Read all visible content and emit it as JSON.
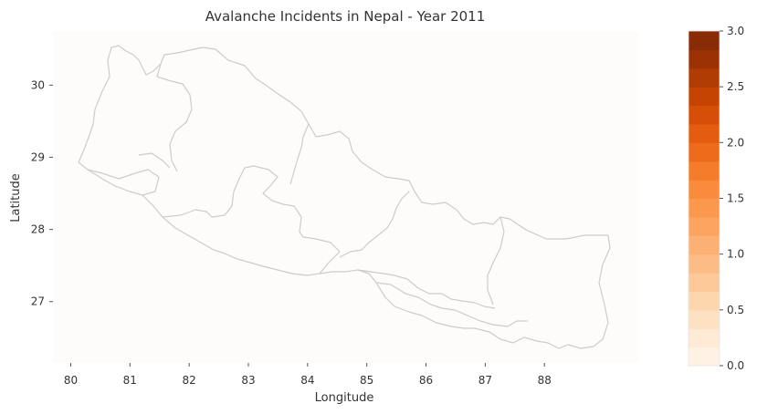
{
  "chart_data": {
    "type": "map",
    "title": "Avalanche Incidents in Nepal - Year 2011",
    "xlabel": "Longitude",
    "ylabel": "Latitude",
    "xlim": [
      79.7,
      89.6
    ],
    "ylim": [
      26.15,
      30.75
    ],
    "xticks": [
      "80",
      "81",
      "82",
      "83",
      "84",
      "85",
      "86",
      "87",
      "88"
    ],
    "yticks": [
      "27",
      "28",
      "29",
      "30"
    ],
    "colorbar": {
      "min": 0.0,
      "max": 3.0,
      "ticks": [
        "0.0",
        "0.5",
        "1.0",
        "1.5",
        "2.0",
        "2.5",
        "3.0"
      ],
      "palette": [
        "#fff5eb",
        "#fee6ce",
        "#fdd0a2",
        "#fdb57d",
        "#fd9f56",
        "#f98431",
        "#ea6313",
        "#d04801",
        "#a53603",
        "#7f2704"
      ]
    },
    "values": "all districts 0",
    "outline_color": "#cccccc",
    "plot_bg": "#fdfcfa"
  }
}
